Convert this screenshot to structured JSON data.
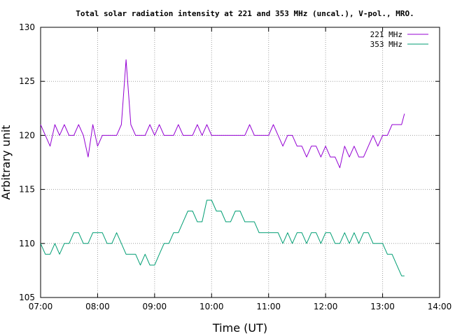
{
  "chart_data": {
    "type": "line",
    "title": "Total solar radiation intensity at 221 and 353 MHz (uncal.), V-pol., MRO.",
    "xlabel": "Time (UT)",
    "ylabel": "Arbitrary unit",
    "xlim": [
      "07:00",
      "14:00"
    ],
    "ylim": [
      105,
      130
    ],
    "x_ticks": [
      "07:00",
      "08:00",
      "09:00",
      "10:00",
      "11:00",
      "12:00",
      "13:00",
      "14:00"
    ],
    "y_ticks": [
      "105",
      "110",
      "115",
      "120",
      "125",
      "130"
    ],
    "grid": true,
    "legend_position": "top-right",
    "x": [
      "07:00",
      "07:05",
      "07:10",
      "07:15",
      "07:20",
      "07:25",
      "07:30",
      "07:35",
      "07:40",
      "07:45",
      "07:50",
      "07:55",
      "08:00",
      "08:05",
      "08:10",
      "08:15",
      "08:20",
      "08:25",
      "08:30",
      "08:35",
      "08:40",
      "08:45",
      "08:50",
      "08:55",
      "09:00",
      "09:05",
      "09:10",
      "09:15",
      "09:20",
      "09:25",
      "09:30",
      "09:35",
      "09:40",
      "09:45",
      "09:50",
      "09:55",
      "10:00",
      "10:05",
      "10:10",
      "10:15",
      "10:20",
      "10:25",
      "10:30",
      "10:35",
      "10:40",
      "10:45",
      "10:50",
      "10:55",
      "11:00",
      "11:05",
      "11:10",
      "11:15",
      "11:20",
      "11:25",
      "11:30",
      "11:35",
      "11:40",
      "11:45",
      "11:50",
      "11:55",
      "12:00",
      "12:05",
      "12:10",
      "12:15",
      "12:20",
      "12:25",
      "12:30",
      "12:35",
      "12:40",
      "12:45",
      "12:50",
      "12:55",
      "13:00",
      "13:05",
      "13:10",
      "13:15",
      "13:20",
      "13:23"
    ],
    "series": [
      {
        "name": "221 MHz",
        "color": "#9400d3",
        "values": [
          121,
          120,
          119,
          121,
          120,
          121,
          120,
          120,
          121,
          120,
          118,
          121,
          119,
          120,
          120,
          120,
          120,
          121,
          127,
          121,
          120,
          120,
          120,
          121,
          120,
          121,
          120,
          120,
          120,
          121,
          120,
          120,
          120,
          121,
          120,
          121,
          120,
          120,
          120,
          120,
          120,
          120,
          120,
          120,
          121,
          120,
          120,
          120,
          120,
          121,
          120,
          119,
          120,
          120,
          119,
          119,
          118,
          119,
          119,
          118,
          119,
          118,
          118,
          117,
          119,
          118,
          119,
          118,
          118,
          119,
          120,
          119,
          120,
          120,
          121,
          121,
          121,
          122
        ]
      },
      {
        "name": "353 MHz",
        "color": "#009e73",
        "values": [
          110,
          109,
          109,
          110,
          109,
          110,
          110,
          111,
          111,
          110,
          110,
          111,
          111,
          111,
          110,
          110,
          111,
          110,
          109,
          109,
          109,
          108,
          109,
          108,
          108,
          109,
          110,
          110,
          111,
          111,
          112,
          113,
          113,
          112,
          112,
          114,
          114,
          113,
          113,
          112,
          112,
          113,
          113,
          112,
          112,
          112,
          111,
          111,
          111,
          111,
          111,
          110,
          111,
          110,
          111,
          111,
          110,
          111,
          111,
          110,
          111,
          111,
          110,
          110,
          111,
          110,
          111,
          110,
          111,
          111,
          110,
          110,
          110,
          109,
          109,
          108,
          107,
          107
        ]
      }
    ]
  }
}
